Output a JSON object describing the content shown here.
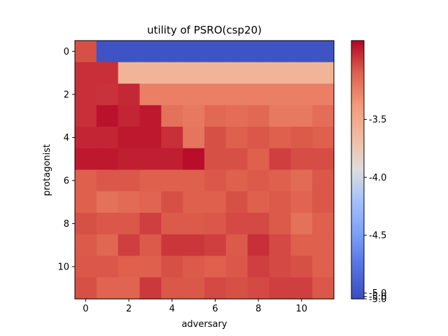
{
  "chart_data": {
    "type": "heatmap",
    "title": "utility of PSRO(csp20)",
    "xlabel": "adversary",
    "ylabel": "protagonist",
    "x_ticks": [
      "0",
      "2",
      "4",
      "6",
      "8",
      "10"
    ],
    "y_ticks": [
      "0",
      "2",
      "4",
      "6",
      "8",
      "10"
    ],
    "rows": 12,
    "cols": 12,
    "colormap": "coolwarm",
    "vmin": -5.05,
    "vmax": -2.82,
    "colorbar_ticks": [
      "-3.5",
      "-4.0",
      "-4.5",
      "-5.0",
      "-5.0",
      "-5.0"
    ],
    "colorbar_tick_values": [
      -3.5,
      -4.0,
      -4.5,
      -5.0,
      -5.03,
      -5.05
    ],
    "values": [
      [
        -3.05,
        -5.0,
        -5.0,
        -5.0,
        -5.0,
        -5.0,
        -5.0,
        -5.0,
        -5.0,
        -5.0,
        -5.0,
        -5.0
      ],
      [
        -2.95,
        -2.95,
        -3.6,
        -3.6,
        -3.6,
        -3.6,
        -3.6,
        -3.6,
        -3.6,
        -3.6,
        -3.6,
        -3.6
      ],
      [
        -2.95,
        -2.96,
        -2.93,
        -3.25,
        -3.25,
        -3.25,
        -3.25,
        -3.25,
        -3.25,
        -3.25,
        -3.25,
        -3.25
      ],
      [
        -2.95,
        -2.86,
        -2.92,
        -2.88,
        -3.18,
        -3.22,
        -3.14,
        -3.16,
        -3.14,
        -3.22,
        -3.22,
        -3.16
      ],
      [
        -2.92,
        -2.92,
        -2.88,
        -2.88,
        -2.95,
        -3.2,
        -3.05,
        -3.1,
        -3.07,
        -3.1,
        -3.08,
        -3.1
      ],
      [
        -2.88,
        -2.88,
        -2.9,
        -2.9,
        -2.9,
        -2.85,
        -3.05,
        -3.05,
        -3.1,
        -3.0,
        -3.04,
        -3.04
      ],
      [
        -3.1,
        -3.07,
        -3.07,
        -3.1,
        -3.1,
        -3.1,
        -3.07,
        -3.1,
        -3.08,
        -3.1,
        -3.15,
        -3.07
      ],
      [
        -3.1,
        -3.18,
        -3.15,
        -3.12,
        -3.05,
        -3.1,
        -3.1,
        -3.05,
        -3.1,
        -3.08,
        -3.12,
        -3.07
      ],
      [
        -3.05,
        -3.07,
        -3.07,
        -3.0,
        -3.08,
        -3.08,
        -3.07,
        -3.03,
        -3.03,
        -3.08,
        -3.18,
        -3.1
      ],
      [
        -3.08,
        -3.13,
        -3.0,
        -3.08,
        -2.97,
        -2.97,
        -3.0,
        -3.08,
        -2.95,
        -3.03,
        -3.1,
        -3.1
      ],
      [
        -3.07,
        -3.07,
        -3.1,
        -3.1,
        -3.05,
        -3.08,
        -3.1,
        -3.07,
        -3.0,
        -3.03,
        -3.05,
        -3.1
      ],
      [
        -3.05,
        -3.12,
        -3.12,
        -2.98,
        -3.07,
        -3.07,
        -3.03,
        -3.05,
        -3.03,
        -3.0,
        -3.0,
        -3.07
      ]
    ]
  }
}
